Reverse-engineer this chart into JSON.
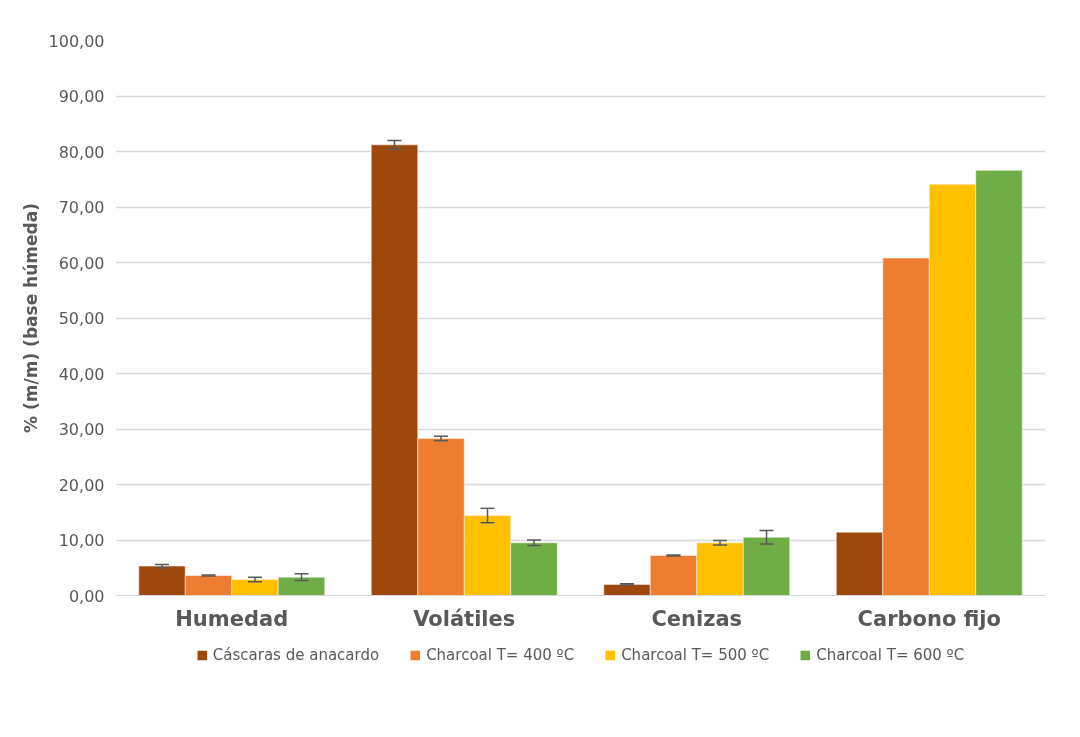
{
  "chart_data": {
    "type": "bar",
    "ylabel": "% (m/m) (base húmeda)",
    "categories": [
      "Humedad",
      "Volátiles",
      "Cenizas",
      "Carbono fijo"
    ],
    "series": [
      {
        "name": "Cáscaras de anacardo",
        "color": "#9e480e",
        "values": [
          5.3,
          81.2,
          2.0,
          11.4
        ],
        "errors": [
          0.3,
          0.8,
          0.1,
          null
        ]
      },
      {
        "name": "Charcoal T= 400 ºC",
        "color": "#ed7d31",
        "values": [
          3.6,
          28.3,
          7.2,
          60.8
        ],
        "errors": [
          0.1,
          0.4,
          0.1,
          null
        ]
      },
      {
        "name": "Charcoal T= 500 ºC",
        "color": "#ffc000",
        "values": [
          2.9,
          14.4,
          9.5,
          74.1
        ],
        "errors": [
          0.4,
          1.3,
          0.4,
          null
        ]
      },
      {
        "name": "Charcoal T= 600 ºC",
        "color": "#70ad47",
        "values": [
          3.3,
          9.5,
          10.5,
          76.6
        ],
        "errors": [
          0.6,
          0.5,
          1.2,
          null
        ]
      }
    ],
    "ylim": [
      0,
      100
    ],
    "yticks": [
      {
        "value": 0,
        "label": "0,00"
      },
      {
        "value": 10,
        "label": "10,00"
      },
      {
        "value": 20,
        "label": "20,00"
      },
      {
        "value": 30,
        "label": "30,00"
      },
      {
        "value": 40,
        "label": "40,00"
      },
      {
        "value": 50,
        "label": "50,00"
      },
      {
        "value": 60,
        "label": "60,00"
      },
      {
        "value": 70,
        "label": "70,00"
      },
      {
        "value": 80,
        "label": "80,00"
      },
      {
        "value": 90,
        "label": "90,00"
      },
      {
        "value": 100,
        "label": "100,00"
      }
    ],
    "grid": "y",
    "legend": "bottom"
  }
}
